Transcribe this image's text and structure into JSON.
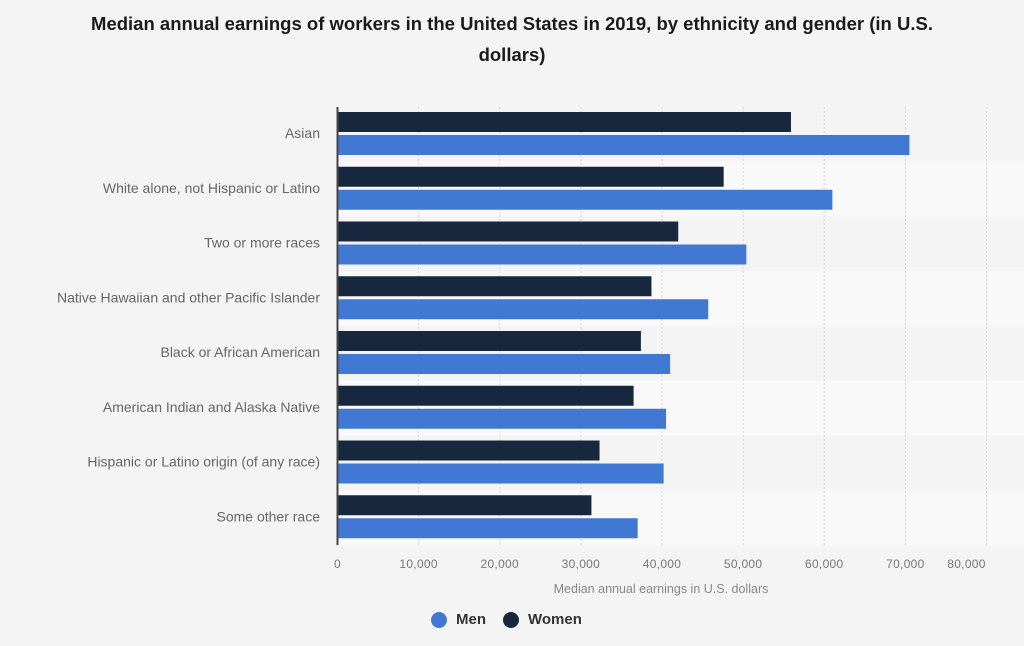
{
  "chart_data": {
    "type": "bar",
    "orientation": "horizontal",
    "title": "Median annual earnings of workers in the United States in 2019, by ethnicity and gender (in U.S. dollars)",
    "xlabel": "Median annual earnings in U.S. dollars",
    "ylabel": "",
    "xlim": [
      0,
      80000
    ],
    "grid": true,
    "legend_position": "bottom",
    "categories": [
      "Asian",
      "White alone, not Hispanic or Latino",
      "Two or more races",
      "Native Hawaiian and other Pacific Islander",
      "Black or African American",
      "American Indian and Alaska Native",
      "Hispanic or Latino origin (of any race)",
      "Some other race"
    ],
    "series": [
      {
        "name": "Men",
        "color": "#4178d4",
        "values": [
          70500,
          61000,
          50400,
          45700,
          41000,
          40500,
          40200,
          37000
        ]
      },
      {
        "name": "Women",
        "color": "#17283e",
        "values": [
          55900,
          47600,
          42000,
          38700,
          37400,
          36500,
          32300,
          31300
        ]
      }
    ],
    "x_ticks": [
      0,
      10000,
      20000,
      30000,
      40000,
      50000,
      60000,
      70000,
      80000
    ],
    "x_tick_labels": [
      "0",
      "10,000",
      "20,000",
      "30,000",
      "40,000",
      "50,000",
      "60,000",
      "70,000",
      "80,000"
    ]
  },
  "legend": {
    "men_label": "Men",
    "women_label": "Women"
  }
}
